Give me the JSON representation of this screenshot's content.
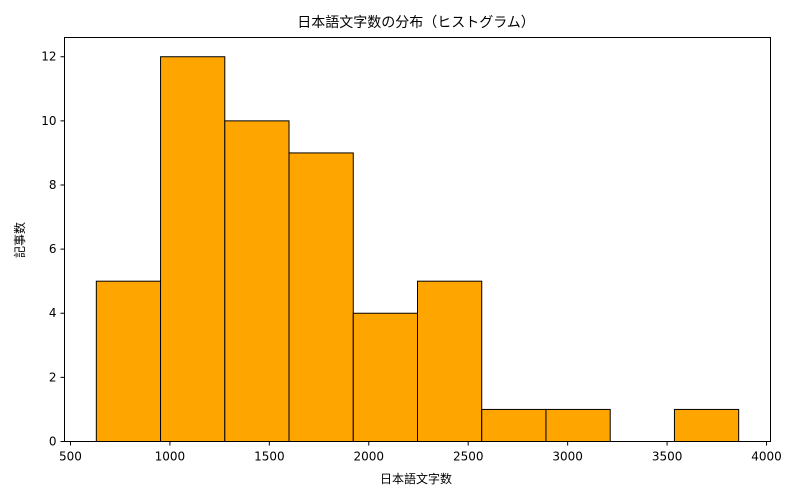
{
  "chart_data": {
    "type": "bar",
    "title": "日本語文字数の分布（ヒストグラム）",
    "xlabel": "日本語文字数",
    "ylabel": "記事数",
    "bin_edges": [
      630,
      953,
      1276,
      1599,
      1922,
      2245,
      2568,
      2891,
      3214,
      3537,
      3860
    ],
    "counts": [
      5,
      12,
      10,
      9,
      4,
      5,
      1,
      1,
      0,
      1
    ],
    "xlim": [
      470,
      4020
    ],
    "ylim": [
      0,
      12.6
    ],
    "xticks": [
      500,
      1000,
      1500,
      2000,
      2500,
      3000,
      3500,
      4000
    ],
    "yticks": [
      0,
      2,
      4,
      6,
      8,
      10,
      12
    ],
    "grid": false,
    "bar_color": "#FFA500",
    "edge_color": "#000000"
  }
}
